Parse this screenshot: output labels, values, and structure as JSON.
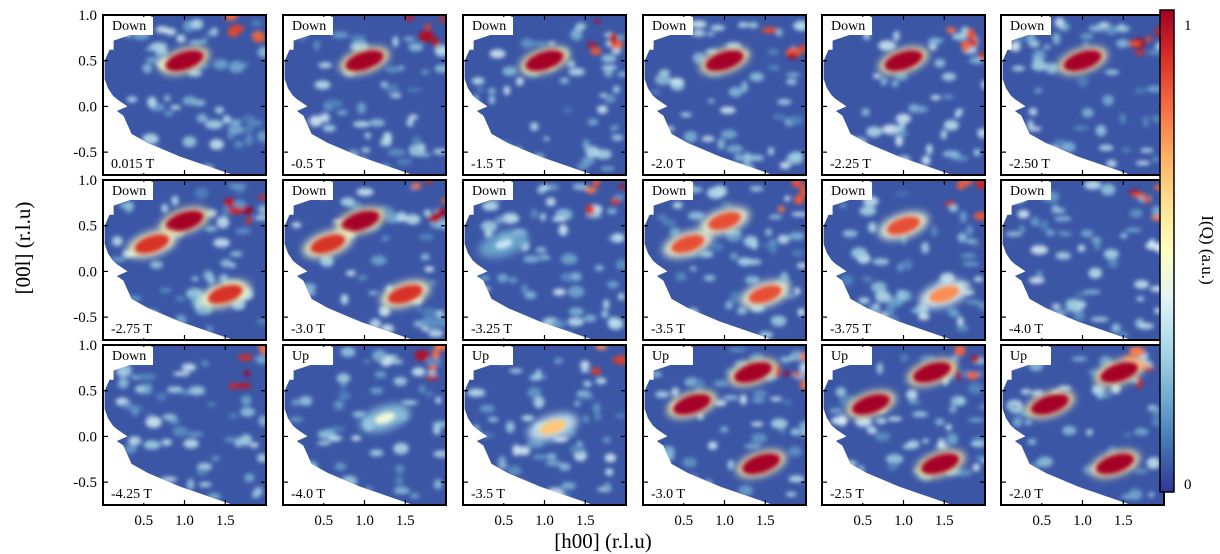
{
  "chart_data": {
    "type": "heatmap",
    "layout": {
      "rows": 3,
      "cols": 6
    },
    "xlabel": "[h00] (r.l.u)",
    "ylabel": "[00l] (r.l.u)",
    "xticks": [
      "0.5",
      "1.0",
      "1.5"
    ],
    "yticks": [
      "1.0",
      "0.5",
      "0.0",
      "-0.5"
    ],
    "xlim": [
      0.0,
      2.0
    ],
    "ylim": [
      -0.75,
      1.0
    ],
    "colorbar": {
      "label": "I(Q) (a.u.)",
      "min_label": "0",
      "max_label": "1",
      "colormap": "RdYlBu_r"
    },
    "colors": {
      "low": "#313695",
      "mid": "#ffffbf",
      "high": "#a50026"
    },
    "panels": [
      {
        "sweep": "Down",
        "field": "0.015 T",
        "spots": [
          {
            "h": 1.0,
            "l": 0.5,
            "I": 1.0
          }
        ]
      },
      {
        "sweep": "Down",
        "field": "-0.5 T",
        "spots": [
          {
            "h": 1.0,
            "l": 0.5,
            "I": 1.0
          }
        ]
      },
      {
        "sweep": "Down",
        "field": "-1.5 T",
        "spots": [
          {
            "h": 1.0,
            "l": 0.5,
            "I": 1.0
          }
        ]
      },
      {
        "sweep": "Down",
        "field": "-2.0 T",
        "spots": [
          {
            "h": 1.0,
            "l": 0.5,
            "I": 1.0
          }
        ]
      },
      {
        "sweep": "Down",
        "field": "-2.25 T",
        "spots": [
          {
            "h": 1.0,
            "l": 0.5,
            "I": 1.0
          }
        ]
      },
      {
        "sweep": "Down",
        "field": "-2.50 T",
        "spots": [
          {
            "h": 1.0,
            "l": 0.5,
            "I": 1.0
          }
        ]
      },
      {
        "sweep": "Down",
        "field": "-2.75 T",
        "spots": [
          {
            "h": 1.0,
            "l": 0.55,
            "I": 1.0
          },
          {
            "h": 0.6,
            "l": 0.3,
            "I": 0.9
          },
          {
            "h": 1.5,
            "l": -0.25,
            "I": 0.9
          }
        ]
      },
      {
        "sweep": "Down",
        "field": "-3.0 T",
        "spots": [
          {
            "h": 0.95,
            "l": 0.55,
            "I": 1.0
          },
          {
            "h": 0.55,
            "l": 0.3,
            "I": 0.9
          },
          {
            "h": 1.5,
            "l": -0.25,
            "I": 0.9
          }
        ]
      },
      {
        "sweep": "Down",
        "field": "-3.25 T",
        "spots": [
          {
            "h": 0.5,
            "l": 0.3,
            "I": 0.35
          }
        ]
      },
      {
        "sweep": "Down",
        "field": "-3.5 T",
        "spots": [
          {
            "h": 1.0,
            "l": 0.55,
            "I": 0.85
          },
          {
            "h": 0.55,
            "l": 0.3,
            "I": 0.85
          },
          {
            "h": 1.5,
            "l": -0.25,
            "I": 0.85
          }
        ]
      },
      {
        "sweep": "Down",
        "field": "-3.75 T",
        "spots": [
          {
            "h": 1.0,
            "l": 0.5,
            "I": 0.85
          },
          {
            "h": 1.5,
            "l": -0.25,
            "I": 0.75
          }
        ]
      },
      {
        "sweep": "Down",
        "field": "-4.0 T",
        "spots": []
      },
      {
        "sweep": "Down",
        "field": "-4.25 T",
        "spots": []
      },
      {
        "sweep": "Up",
        "field": "-4.0 T",
        "spots": [
          {
            "h": 1.25,
            "l": 0.2,
            "I": 0.45
          }
        ]
      },
      {
        "sweep": "Up",
        "field": "-3.5 T",
        "spots": [
          {
            "h": 1.1,
            "l": 0.1,
            "I": 0.65
          }
        ]
      },
      {
        "sweep": "Up",
        "field": "-3.0 T",
        "spots": [
          {
            "h": 0.6,
            "l": 0.35,
            "I": 1.0
          },
          {
            "h": 1.35,
            "l": 0.7,
            "I": 1.0
          },
          {
            "h": 1.45,
            "l": -0.3,
            "I": 1.0
          }
        ]
      },
      {
        "sweep": "Up",
        "field": "-2.5 T",
        "spots": [
          {
            "h": 0.6,
            "l": 0.35,
            "I": 1.0
          },
          {
            "h": 1.35,
            "l": 0.7,
            "I": 1.0
          },
          {
            "h": 1.45,
            "l": -0.3,
            "I": 1.0
          }
        ]
      },
      {
        "sweep": "Up",
        "field": "-2.0 T",
        "spots": [
          {
            "h": 0.6,
            "l": 0.35,
            "I": 1.0
          },
          {
            "h": 1.45,
            "l": 0.7,
            "I": 1.0
          },
          {
            "h": 1.4,
            "l": -0.3,
            "I": 1.0
          }
        ]
      }
    ]
  }
}
